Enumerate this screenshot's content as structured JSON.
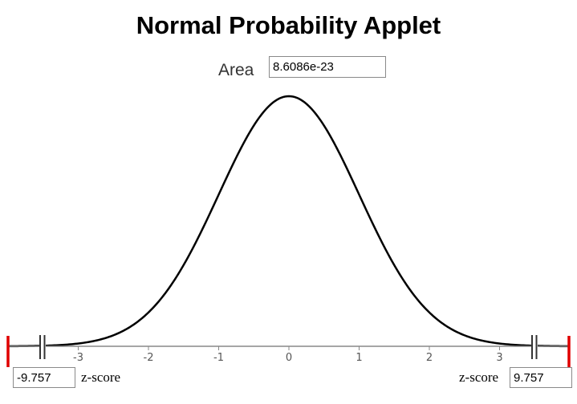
{
  "title": "Normal Probability Applet",
  "area": {
    "label": "Area",
    "value": "8.6086e-23"
  },
  "left_z": {
    "value": "-9.757",
    "label": "z-score"
  },
  "right_z": {
    "value": "9.757",
    "label": "z-score"
  },
  "axis": {
    "ticks": [
      "-3",
      "-2",
      "-1",
      "0",
      "1",
      "2",
      "3"
    ],
    "range": [
      -4,
      4
    ]
  },
  "colors": {
    "curve": "#000000",
    "axis": "#888888",
    "endpoint_markers": "#e00000",
    "handles": "#333333"
  }
}
